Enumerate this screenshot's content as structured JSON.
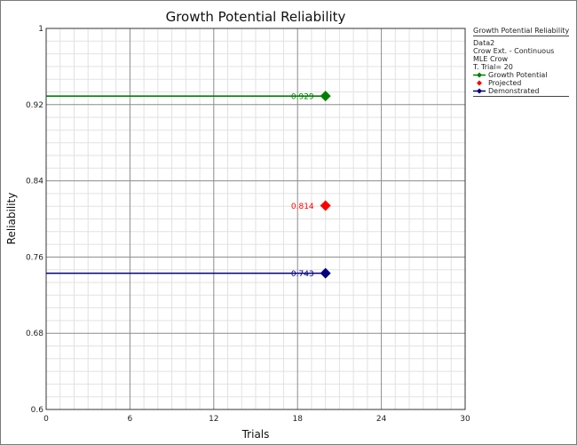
{
  "chart_data": {
    "type": "scatter",
    "title": "Growth Potential Reliability",
    "xlabel": "Trials",
    "ylabel": "Reliability",
    "xlim": [
      0,
      30
    ],
    "ylim": [
      0.6,
      1
    ],
    "x_ticks": [
      "0",
      "6",
      "12",
      "18",
      "24",
      "30"
    ],
    "y_ticks": [
      "0.6",
      "0.68",
      "0.76",
      "0.84",
      "0.92",
      "1"
    ],
    "grid": true,
    "legend_position": "right",
    "series": [
      {
        "name": "Growth Potential",
        "color": "#008000",
        "x": 20,
        "y": 0.929,
        "label": "0.929",
        "line_from_x": 0
      },
      {
        "name": "Projected",
        "color": "#ff0000",
        "x": 20,
        "y": 0.814,
        "label": "0.814"
      },
      {
        "name": "Demonstrated",
        "color": "#000080",
        "x": 20,
        "y": 0.743,
        "label": "0.743",
        "line_from_x": 0
      }
    ]
  },
  "legend": {
    "title": "Growth Potential Reliability",
    "lines": [
      "Data2",
      "Crow Ext. - Continuous",
      "MLE Crow",
      "T. Trial= 20"
    ]
  }
}
